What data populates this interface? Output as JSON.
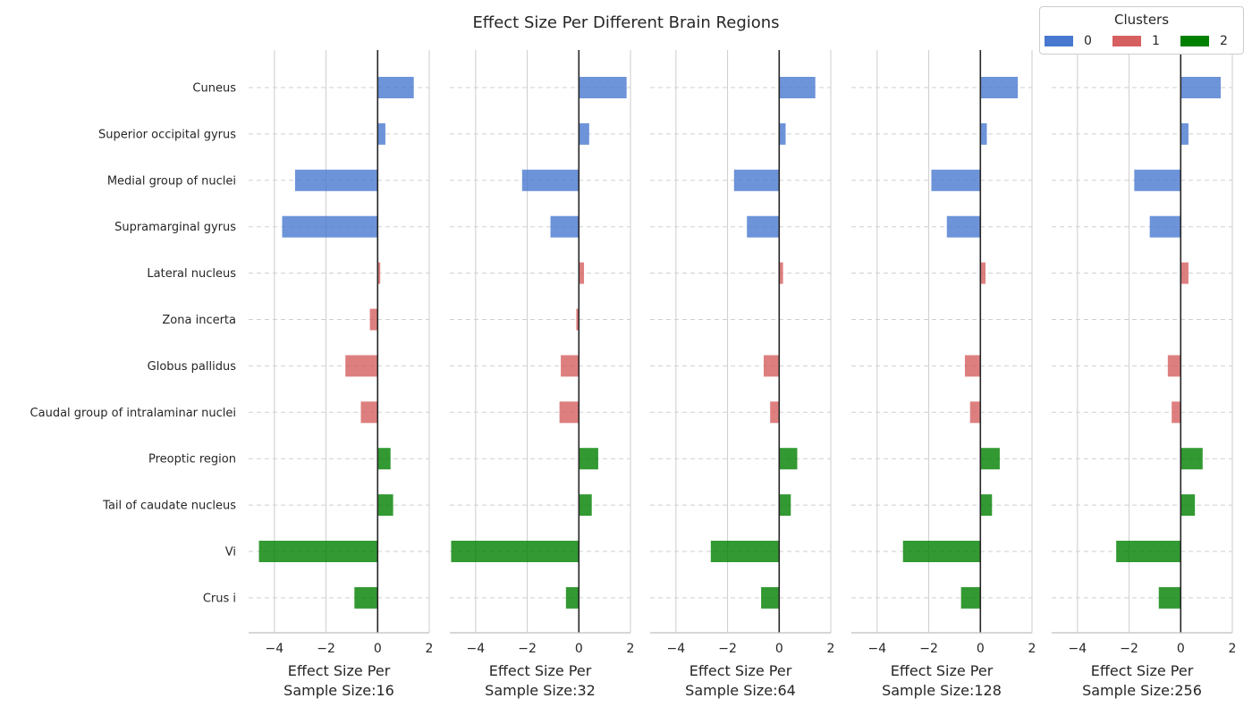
{
  "chart_data": {
    "type": "bar",
    "title": "Effect Size Per Different Brain Regions",
    "orientation": "horizontal",
    "categories": [
      "Cuneus",
      "Superior occipital gyrus",
      "Medial group of nuclei",
      "Supramarginal gyrus",
      "Lateral nucleus",
      "Zona incerta",
      "Globus pallidus",
      "Caudal group of intralaminar nuclei",
      "Preoptic region",
      "Tail of caudate nucleus",
      "Vi",
      "Crus i"
    ],
    "category_clusters": [
      0,
      0,
      0,
      0,
      1,
      1,
      1,
      1,
      2,
      2,
      2,
      2
    ],
    "cluster_colors": {
      "0": "#4878d0",
      "1": "#d65f5f",
      "2": "#008000"
    },
    "legend": {
      "title": "Clusters",
      "entries": [
        "0",
        "1",
        "2"
      ],
      "placement": "top-right"
    },
    "xlim": [
      -5,
      2
    ],
    "xticks": [
      "−4",
      "−2",
      "0",
      "2"
    ],
    "xtick_values": [
      -4,
      -2,
      0,
      2
    ],
    "grid": true,
    "panels": [
      {
        "xlabel_line1": "Effect Size Per",
        "xlabel_line2": "Sample Size:16",
        "values": [
          1.4,
          0.3,
          -3.2,
          -3.7,
          0.1,
          -0.3,
          -1.25,
          -0.65,
          0.5,
          0.6,
          -4.6,
          -0.9
        ]
      },
      {
        "xlabel_line1": "Effect Size Per",
        "xlabel_line2": "Sample Size:32",
        "values": [
          1.85,
          0.4,
          -2.2,
          -1.1,
          0.2,
          -0.1,
          -0.7,
          -0.75,
          0.75,
          0.5,
          -4.95,
          -0.5
        ]
      },
      {
        "xlabel_line1": "Effect Size Per",
        "xlabel_line2": "Sample Size:64",
        "values": [
          1.4,
          0.25,
          -1.75,
          -1.25,
          0.15,
          0.0,
          -0.6,
          -0.35,
          0.7,
          0.45,
          -2.65,
          -0.7
        ]
      },
      {
        "xlabel_line1": "Effect Size Per",
        "xlabel_line2": "Sample Size:128",
        "values": [
          1.45,
          0.25,
          -1.9,
          -1.3,
          0.2,
          0.0,
          -0.6,
          -0.4,
          0.75,
          0.45,
          -3.0,
          -0.75
        ]
      },
      {
        "xlabel_line1": "Effect Size Per",
        "xlabel_line2": "Sample Size:256",
        "values": [
          1.55,
          0.3,
          -1.8,
          -1.2,
          0.3,
          0.0,
          -0.5,
          -0.35,
          0.85,
          0.55,
          -2.5,
          -0.85
        ]
      }
    ]
  }
}
